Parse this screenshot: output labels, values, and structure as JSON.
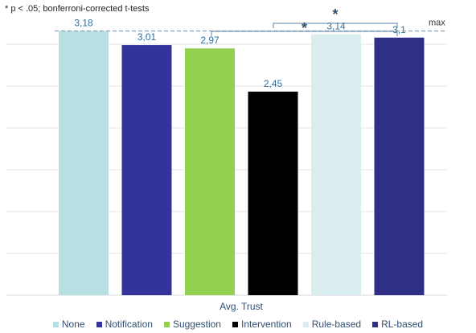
{
  "note": "* p < .05; bonferroni-corrected t-tests",
  "chart_data": {
    "type": "bar",
    "categories": [
      "Avg. Trust"
    ],
    "xlabel": "Avg. Trust",
    "ylim": [
      0,
      3.33
    ],
    "grid": true,
    "legend_position": "bottom",
    "series": [
      {
        "name": "None",
        "values": [
          3.18
        ],
        "label": "3,18",
        "color": "#b8dfe1"
      },
      {
        "name": "Notification",
        "values": [
          3.01
        ],
        "label": "3,01",
        "color": "#33339a"
      },
      {
        "name": "Suggestion",
        "values": [
          2.97
        ],
        "label": "2,97",
        "color": "#92d050"
      },
      {
        "name": "Intervention",
        "values": [
          2.45
        ],
        "label": "2,45",
        "color": "#000000"
      },
      {
        "name": "Rule-based",
        "values": [
          3.14
        ],
        "label": "3,14",
        "color": "#daeef0"
      },
      {
        "name": "RL-based",
        "values": [
          3.1
        ],
        "label": "3,1",
        "color": "#2e2f85"
      }
    ],
    "reference_line": {
      "label": "max",
      "value": 3.18
    },
    "significance": [
      {
        "from": "Rule-based",
        "to": "RL-based",
        "label": "*"
      },
      {
        "from": "Intervention",
        "to": "RL-based",
        "label": "*"
      }
    ]
  }
}
